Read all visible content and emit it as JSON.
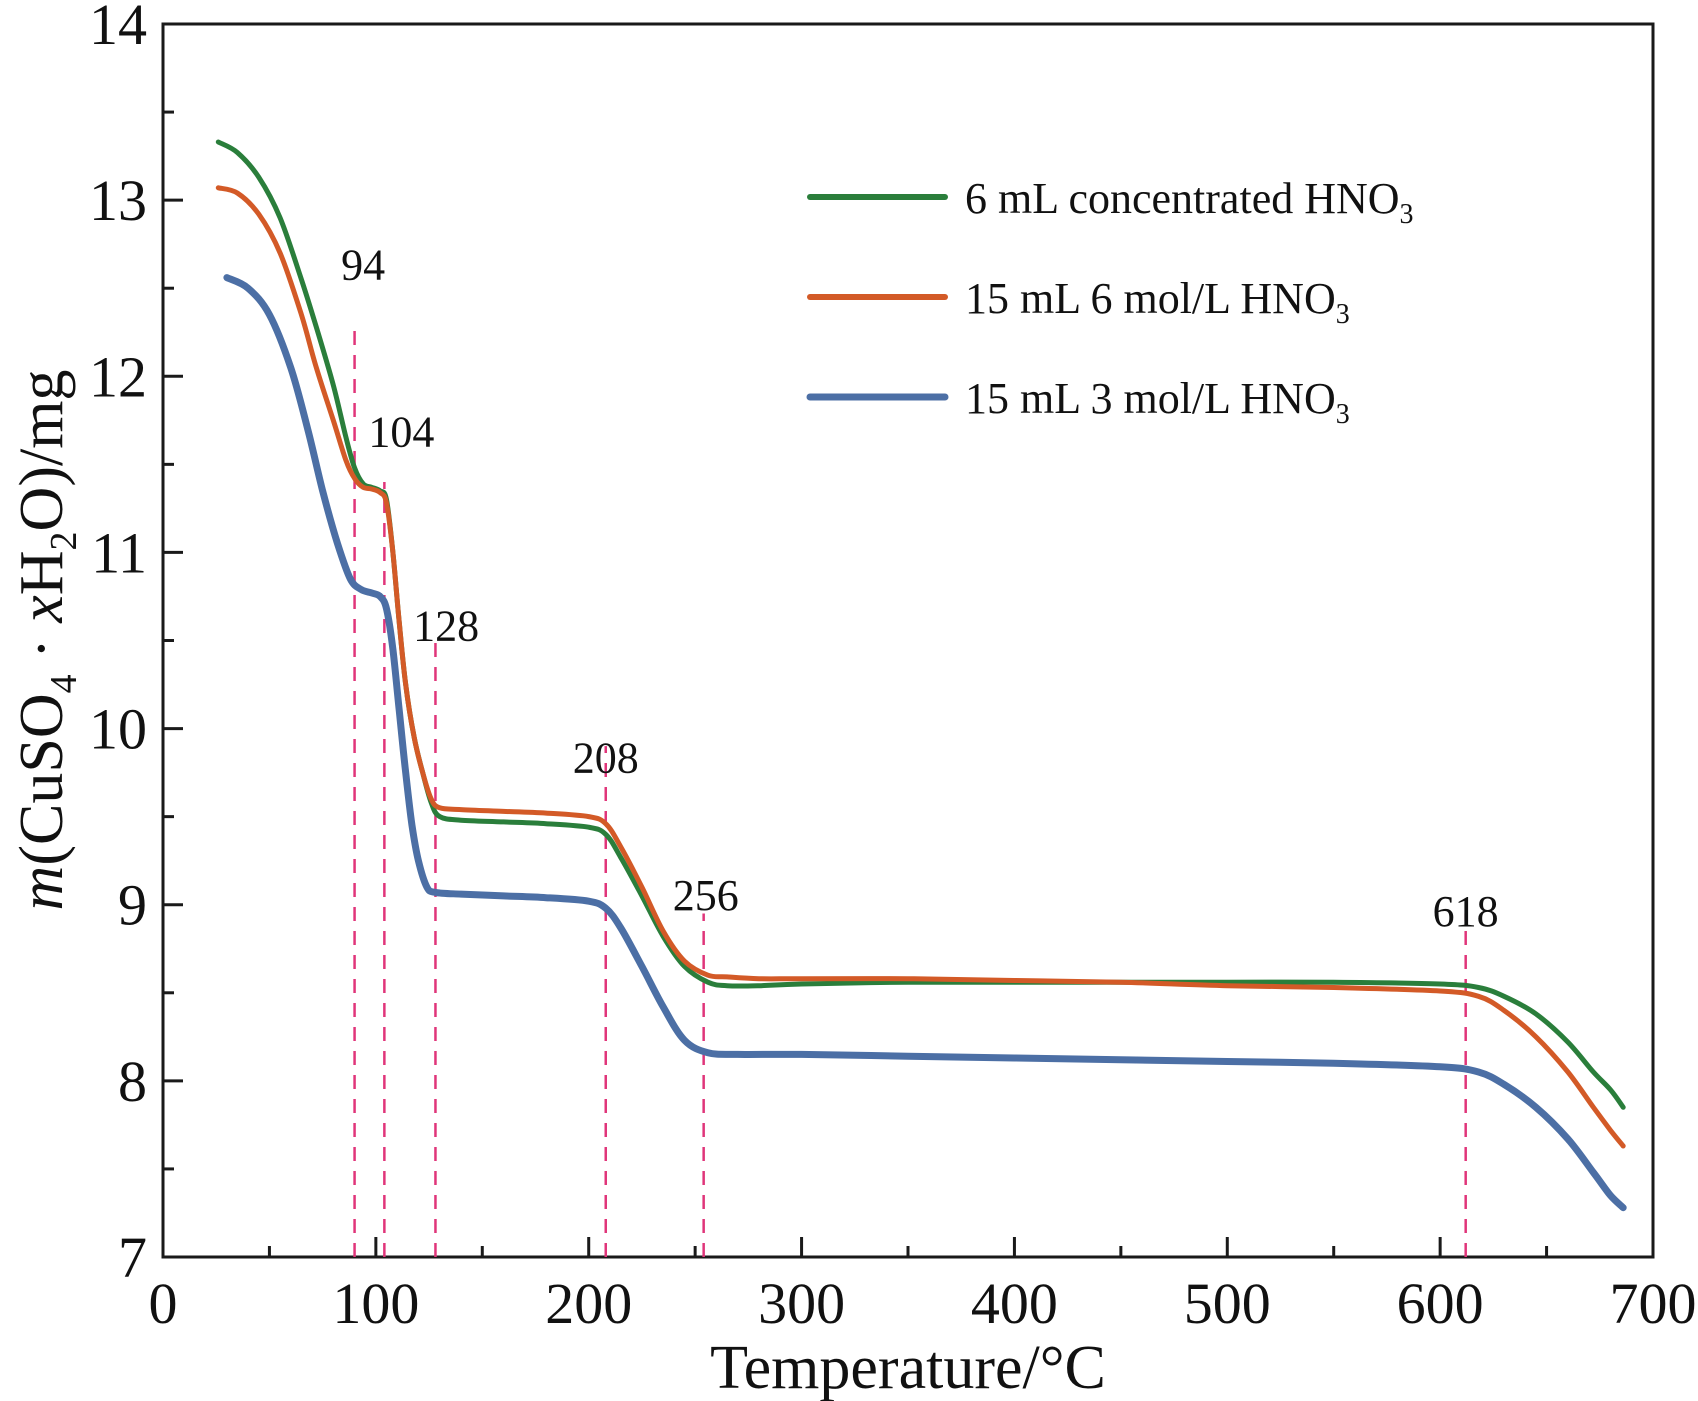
{
  "chart_data": {
    "type": "line",
    "xlabel": "Temperature/°C",
    "ylabel_parts": {
      "m": "m",
      "open": "(CuSO",
      "sub4": "4",
      "dot": " · ",
      "x": "x",
      "h": "H",
      "sub2": "2",
      "close": "O)/mg"
    },
    "xlim": [
      0,
      700
    ],
    "ylim": [
      7,
      14
    ],
    "xticks": [
      0,
      100,
      200,
      300,
      400,
      500,
      600,
      700
    ],
    "xticks_minor": [
      50,
      150,
      250,
      350,
      450,
      550,
      650
    ],
    "yticks": [
      7,
      8,
      9,
      10,
      11,
      12,
      13,
      14
    ],
    "yticks_minor": [
      7.5,
      8.5,
      9.5,
      10.5,
      11.5,
      12.5,
      13.5
    ],
    "legend_position": "top-right",
    "series": [
      {
        "name_main": "6 mL concentrated HNO",
        "name_sub": "3",
        "color": "#2a7e3b",
        "points": [
          [
            26,
            13.33
          ],
          [
            35,
            13.27
          ],
          [
            45,
            13.13
          ],
          [
            55,
            12.9
          ],
          [
            65,
            12.55
          ],
          [
            72,
            12.28
          ],
          [
            80,
            11.95
          ],
          [
            86,
            11.65
          ],
          [
            90,
            11.48
          ],
          [
            94,
            11.39
          ],
          [
            98,
            11.37
          ],
          [
            102,
            11.35
          ],
          [
            105,
            11.3
          ],
          [
            108,
            11.0
          ],
          [
            111,
            10.6
          ],
          [
            114,
            10.25
          ],
          [
            118,
            9.95
          ],
          [
            122,
            9.75
          ],
          [
            126,
            9.58
          ],
          [
            130,
            9.5
          ],
          [
            140,
            9.48
          ],
          [
            160,
            9.47
          ],
          [
            180,
            9.46
          ],
          [
            200,
            9.44
          ],
          [
            208,
            9.4
          ],
          [
            215,
            9.27
          ],
          [
            225,
            9.05
          ],
          [
            235,
            8.82
          ],
          [
            245,
            8.65
          ],
          [
            256,
            8.56
          ],
          [
            265,
            8.54
          ],
          [
            280,
            8.54
          ],
          [
            300,
            8.55
          ],
          [
            350,
            8.56
          ],
          [
            400,
            8.56
          ],
          [
            450,
            8.56
          ],
          [
            500,
            8.56
          ],
          [
            550,
            8.56
          ],
          [
            600,
            8.55
          ],
          [
            618,
            8.53
          ],
          [
            630,
            8.48
          ],
          [
            645,
            8.38
          ],
          [
            660,
            8.22
          ],
          [
            672,
            8.05
          ],
          [
            680,
            7.95
          ],
          [
            686,
            7.85
          ]
        ]
      },
      {
        "name_main": "15 mL 6 mol/L HNO",
        "name_sub": "3",
        "color": "#d35a27",
        "points": [
          [
            26,
            13.07
          ],
          [
            35,
            13.04
          ],
          [
            45,
            12.92
          ],
          [
            55,
            12.7
          ],
          [
            65,
            12.35
          ],
          [
            72,
            12.05
          ],
          [
            80,
            11.75
          ],
          [
            86,
            11.52
          ],
          [
            90,
            11.42
          ],
          [
            94,
            11.37
          ],
          [
            98,
            11.36
          ],
          [
            102,
            11.34
          ],
          [
            105,
            11.28
          ],
          [
            108,
            11.0
          ],
          [
            111,
            10.6
          ],
          [
            114,
            10.25
          ],
          [
            118,
            9.95
          ],
          [
            122,
            9.75
          ],
          [
            126,
            9.6
          ],
          [
            130,
            9.55
          ],
          [
            140,
            9.54
          ],
          [
            160,
            9.53
          ],
          [
            180,
            9.52
          ],
          [
            200,
            9.5
          ],
          [
            208,
            9.46
          ],
          [
            215,
            9.33
          ],
          [
            225,
            9.1
          ],
          [
            235,
            8.85
          ],
          [
            245,
            8.68
          ],
          [
            256,
            8.6
          ],
          [
            265,
            8.59
          ],
          [
            280,
            8.58
          ],
          [
            300,
            8.58
          ],
          [
            350,
            8.58
          ],
          [
            400,
            8.57
          ],
          [
            450,
            8.56
          ],
          [
            500,
            8.54
          ],
          [
            550,
            8.53
          ],
          [
            600,
            8.51
          ],
          [
            618,
            8.48
          ],
          [
            630,
            8.4
          ],
          [
            645,
            8.25
          ],
          [
            660,
            8.05
          ],
          [
            672,
            7.85
          ],
          [
            680,
            7.72
          ],
          [
            686,
            7.63
          ]
        ]
      },
      {
        "name_main": "15 mL 3 mol/L HNO",
        "name_sub": "3",
        "color": "#4c6fa5",
        "points": [
          [
            30,
            12.56
          ],
          [
            40,
            12.5
          ],
          [
            50,
            12.35
          ],
          [
            60,
            12.05
          ],
          [
            68,
            11.7
          ],
          [
            75,
            11.35
          ],
          [
            82,
            11.05
          ],
          [
            88,
            10.85
          ],
          [
            93,
            10.79
          ],
          [
            98,
            10.77
          ],
          [
            102,
            10.75
          ],
          [
            105,
            10.68
          ],
          [
            108,
            10.45
          ],
          [
            111,
            10.1
          ],
          [
            114,
            9.75
          ],
          [
            117,
            9.45
          ],
          [
            120,
            9.25
          ],
          [
            124,
            9.1
          ],
          [
            128,
            9.07
          ],
          [
            140,
            9.06
          ],
          [
            160,
            9.05
          ],
          [
            180,
            9.04
          ],
          [
            200,
            9.02
          ],
          [
            208,
            8.98
          ],
          [
            215,
            8.87
          ],
          [
            225,
            8.65
          ],
          [
            235,
            8.42
          ],
          [
            245,
            8.23
          ],
          [
            256,
            8.16
          ],
          [
            270,
            8.15
          ],
          [
            300,
            8.15
          ],
          [
            350,
            8.14
          ],
          [
            400,
            8.13
          ],
          [
            450,
            8.12
          ],
          [
            500,
            8.11
          ],
          [
            550,
            8.1
          ],
          [
            600,
            8.08
          ],
          [
            618,
            8.05
          ],
          [
            630,
            7.98
          ],
          [
            645,
            7.85
          ],
          [
            660,
            7.67
          ],
          [
            672,
            7.48
          ],
          [
            680,
            7.35
          ],
          [
            686,
            7.28
          ]
        ]
      }
    ],
    "vlines": [
      90,
      104,
      128,
      208,
      254,
      612
    ],
    "vline_color": "#e0357a",
    "annotations": [
      {
        "text": "94",
        "x": 94,
        "y": 12.55
      },
      {
        "text": "104",
        "x": 112,
        "y": 11.6
      },
      {
        "text": "128",
        "x": 133,
        "y": 10.5
      },
      {
        "text": "208",
        "x": 208,
        "y": 9.75
      },
      {
        "text": "256",
        "x": 255,
        "y": 8.97
      },
      {
        "text": "618",
        "x": 612,
        "y": 8.88
      }
    ]
  }
}
